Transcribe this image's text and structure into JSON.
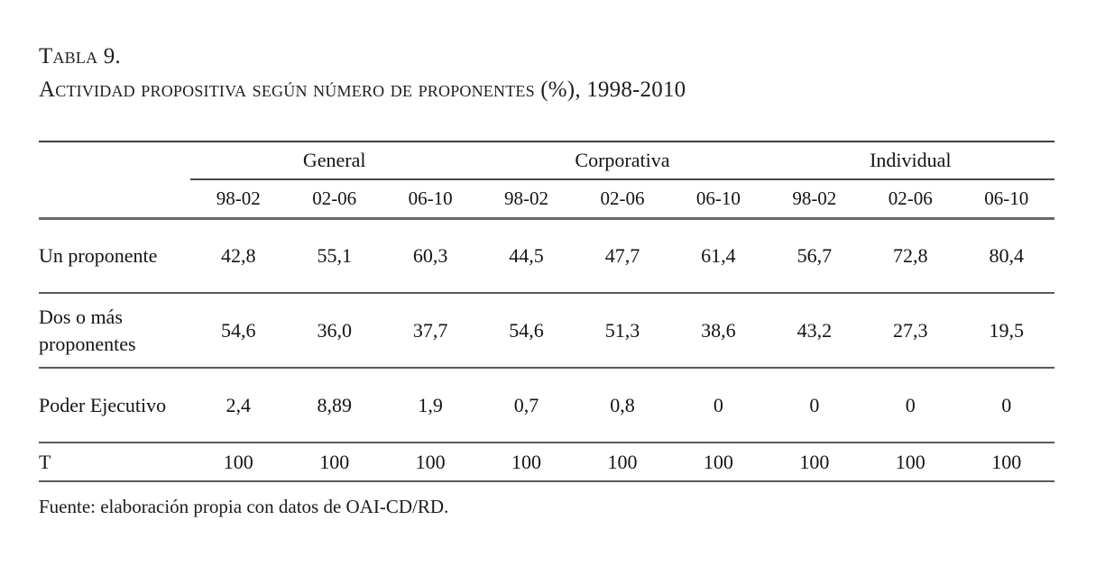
{
  "title": {
    "line1": "Tabla 9.",
    "line2": "Actividad propositiva según número de proponentes (%), 1998-2010"
  },
  "table": {
    "groups": [
      "General",
      "Corporativa",
      "Individual"
    ],
    "periods": [
      "98-02",
      "02-06",
      "06-10",
      "98-02",
      "02-06",
      "06-10",
      "98-02",
      "02-06",
      "06-10"
    ],
    "rows": [
      {
        "label": "Un proponente",
        "label_bold": false,
        "values": [
          "42,8",
          "55,1",
          "60,3",
          "44,5",
          "47,7",
          "61,4",
          "56,7",
          "72,8",
          "80,4"
        ],
        "bold": [
          false,
          false,
          true,
          false,
          false,
          true,
          false,
          false,
          true
        ]
      },
      {
        "label": "Dos o más proponentes",
        "label_bold": false,
        "values": [
          "54,6",
          "36,0",
          "37,7",
          "54,6",
          "51,3",
          "38,6",
          "43,2",
          "27,3",
          "19,5"
        ],
        "bold": [
          false,
          false,
          false,
          false,
          false,
          false,
          false,
          false,
          false
        ]
      },
      {
        "label": "Poder Ejecutivo",
        "label_bold": false,
        "values": [
          "2,4",
          "8,89",
          "1,9",
          "0,7",
          "0,8",
          "0",
          "0",
          "0",
          "0"
        ],
        "bold": [
          false,
          false,
          false,
          false,
          false,
          false,
          false,
          false,
          false
        ]
      },
      {
        "label": "T",
        "label_bold": true,
        "values": [
          "100",
          "100",
          "100",
          "100",
          "100",
          "100",
          "100",
          "100",
          "100"
        ],
        "bold": [
          false,
          false,
          false,
          false,
          false,
          false,
          false,
          false,
          false
        ]
      }
    ]
  },
  "footer": {
    "source": "Fuente: elaboración propia con datos de OAI-CD/RD."
  }
}
